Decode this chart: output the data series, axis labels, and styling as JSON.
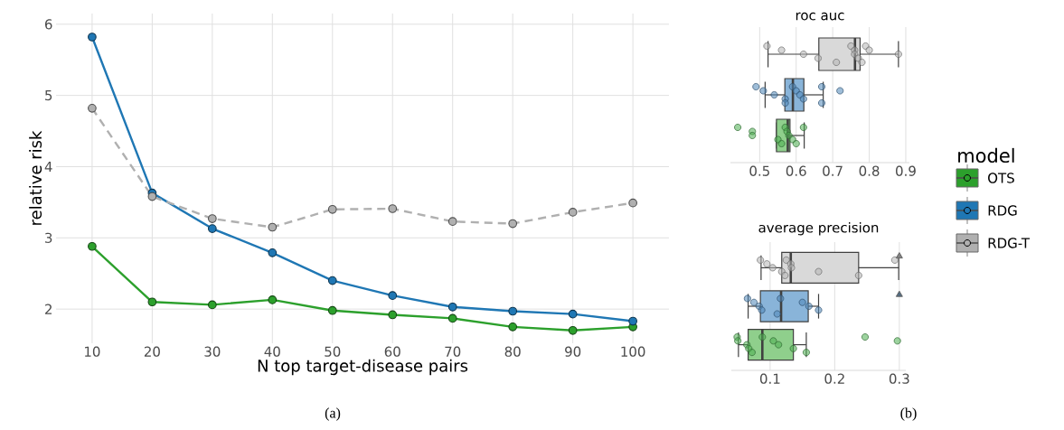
{
  "chart_data": [
    {
      "type": "line",
      "xlabel": "N top target-disease pairs",
      "ylabel": "relative risk",
      "x": [
        10,
        20,
        30,
        40,
        50,
        60,
        70,
        80,
        90,
        100
      ],
      "xlim": [
        4,
        106
      ],
      "ylim": [
        1.52,
        6.15
      ],
      "xticks": [
        10,
        20,
        30,
        40,
        50,
        60,
        70,
        80,
        90,
        100
      ],
      "yticks": [
        2,
        3,
        4,
        5,
        6
      ],
      "grid": true,
      "marker": "circle",
      "legend": "right",
      "legend_title": "model",
      "annotations": [
        "(a)"
      ],
      "series": [
        {
          "name": "OTS",
          "color": "#2ca02c",
          "values": [
            2.88,
            2.1,
            2.06,
            2.13,
            1.98,
            1.92,
            1.87,
            1.75,
            1.7,
            1.75
          ]
        },
        {
          "name": "RDG",
          "color": "#1f77b4",
          "values": [
            5.82,
            3.63,
            3.13,
            2.79,
            2.4,
            2.19,
            2.03,
            1.97,
            1.93,
            1.83
          ]
        },
        {
          "name": "RDG-T",
          "color": "#b0b0b0",
          "line_style": "dashed",
          "values": [
            4.82,
            3.58,
            3.27,
            3.15,
            3.4,
            3.41,
            3.23,
            3.2,
            3.36,
            3.49
          ]
        }
      ]
    },
    {
      "type": "box",
      "title": "roc auc",
      "orientation": "horizontal",
      "categories": [
        null
      ],
      "xlim": [
        0.42,
        0.91
      ],
      "xticks": [
        0.5,
        0.6,
        0.7,
        0.8,
        0.9
      ],
      "grid": "x",
      "marker": "circle",
      "series": [
        {
          "color": "#d9d9d9",
          "boxes": [
            {
              "low": 0.523,
              "q1": 0.662,
              "median": 0.761,
              "q3": 0.775,
              "high": 0.88
            }
          ]
        },
        {
          "color": "#89b4d9",
          "boxes": [
            {
              "low": 0.515,
              "q1": 0.569,
              "median": 0.591,
              "q3": 0.621,
              "high": 0.674
            }
          ]
        },
        {
          "color": "#8fcf8c",
          "boxes": [
            {
              "low": 0.546,
              "q1": 0.546,
              "median": 0.577,
              "q3": 0.583,
              "high": 0.622
            }
          ]
        },
        {
          "type": "scatter",
          "color": "#b5b5b5",
          "x": [
            null,
            null,
            null,
            null,
            null,
            null,
            null,
            null,
            null,
            null,
            null,
            null,
            null
          ],
          "values": [
            0.52,
            0.56,
            0.62,
            0.66,
            0.71,
            0.75,
            0.76,
            0.76,
            0.77,
            0.78,
            0.79,
            0.8,
            0.88
          ]
        },
        {
          "type": "scatter",
          "color": "#4f86b8",
          "x": [
            null,
            null,
            null,
            null,
            null,
            null,
            null,
            null,
            null,
            null,
            null,
            null
          ],
          "values": [
            0.49,
            0.51,
            0.54,
            0.57,
            0.57,
            0.59,
            0.6,
            0.61,
            0.62,
            0.67,
            0.67,
            0.72
          ]
        },
        {
          "type": "scatter",
          "color": "#4caf50",
          "x": [
            null,
            null,
            null,
            null,
            null,
            null,
            null,
            null,
            null,
            null,
            null
          ],
          "values": [
            0.44,
            0.48,
            0.48,
            0.55,
            0.56,
            0.57,
            0.575,
            0.58,
            0.59,
            0.6,
            0.62
          ]
        }
      ]
    },
    {
      "type": "box",
      "title": "average precision",
      "orientation": "horizontal",
      "categories": [
        null
      ],
      "xlim": [
        0.04,
        0.31
      ],
      "xticks": [
        0.1,
        0.2,
        0.3
      ],
      "grid": "x",
      "marker": "circle",
      "annotations": [
        "(b)"
      ],
      "series": [
        {
          "color": "#d9d9d9",
          "boxes": [
            {
              "low": 0.086,
              "q1": 0.118,
              "median": 0.132,
              "q3": 0.237,
              "high": 0.299,
              "outliers": [
                0.3
              ]
            }
          ]
        },
        {
          "color": "#89b4d9",
          "boxes": [
            {
              "low": 0.066,
              "q1": 0.085,
              "median": 0.117,
              "q3": 0.159,
              "high": 0.175,
              "outliers": [
                0.3
              ]
            }
          ]
        },
        {
          "color": "#8fcf8c",
          "boxes": [
            {
              "low": 0.051,
              "q1": 0.066,
              "median": 0.088,
              "q3": 0.136,
              "high": 0.156
            }
          ]
        },
        {
          "type": "scatter",
          "color": "#b5b5b5",
          "x": [
            null,
            null,
            null,
            null,
            null,
            null,
            null,
            null,
            null,
            null,
            null
          ],
          "values": [
            0.085,
            0.095,
            0.104,
            0.118,
            0.123,
            0.125,
            0.132,
            0.133,
            0.175,
            0.237,
            0.293
          ]
        },
        {
          "type": "scatter",
          "color": "#4f86b8",
          "x": [
            null,
            null,
            null,
            null,
            null,
            null,
            null,
            null,
            null
          ],
          "values": [
            0.065,
            0.075,
            0.083,
            0.087,
            0.111,
            0.116,
            0.15,
            0.16,
            0.175
          ]
        },
        {
          "type": "scatter",
          "color": "#4caf50",
          "x": [
            null,
            null,
            null,
            null,
            null,
            null,
            null,
            null,
            null,
            null,
            null,
            null
          ],
          "values": [
            0.049,
            0.05,
            0.064,
            0.067,
            0.072,
            0.088,
            0.105,
            0.113,
            0.136,
            0.156,
            0.247,
            0.297
          ]
        }
      ]
    }
  ]
}
